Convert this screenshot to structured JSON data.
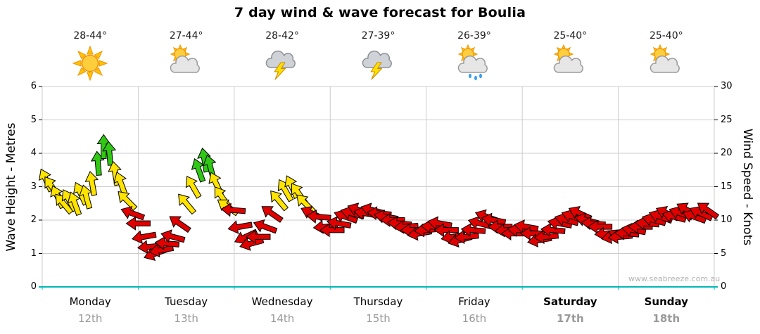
{
  "title": "7 day wind & wave forecast for Boulia",
  "watermark": "www.seabreeze.com.au",
  "days": [
    {
      "name": "Monday",
      "date": "12th",
      "temp": "28-44°",
      "icon": "sun",
      "bold": false
    },
    {
      "name": "Tuesday",
      "date": "13th",
      "temp": "27-44°",
      "icon": "sun-cloud",
      "bold": false
    },
    {
      "name": "Wednesday",
      "date": "14th",
      "temp": "28-42°",
      "icon": "storm",
      "bold": false
    },
    {
      "name": "Thursday",
      "date": "15th",
      "temp": "27-39°",
      "icon": "storm",
      "bold": false
    },
    {
      "name": "Friday",
      "date": "16th",
      "temp": "26-39°",
      "icon": "sun-cloud-showers",
      "bold": false
    },
    {
      "name": "Saturday",
      "date": "17th",
      "temp": "25-40°",
      "icon": "sun-cloud",
      "bold": true
    },
    {
      "name": "Sunday",
      "date": "18th",
      "temp": "25-40°",
      "icon": "sun-cloud",
      "bold": true
    }
  ],
  "chart_data": {
    "type": "scatter",
    "marker": "directional-wind-arrow",
    "title": "7 day wind & wave forecast for Boulia",
    "x_axis": {
      "categories": [
        "Monday 12th",
        "Tuesday 13th",
        "Wednesday 14th",
        "Thursday 15th",
        "Friday 16th",
        "Saturday 17th",
        "Sunday 18th"
      ],
      "range_days": [
        0,
        7
      ]
    },
    "left_axis": {
      "label": "Wave Height - Metres",
      "min": 0,
      "max": 6,
      "ticks": [
        0,
        1,
        2,
        3,
        4,
        5,
        6
      ]
    },
    "right_axis": {
      "label": "Wind Speed - Knots",
      "min": 0,
      "max": 30,
      "ticks": [
        0,
        5,
        10,
        15,
        20,
        25,
        30
      ]
    },
    "grid": true,
    "colors": {
      "red": "#e00000",
      "yellow": "#ffe400",
      "green": "#30c814",
      "axis": "#00b8b8",
      "grid": "#cccccc",
      "yellow_min": 12,
      "green_min": 17.5
    },
    "point_format": [
      "day_offset",
      "wind_speed_knots",
      "arrow_direction_deg"
    ],
    "points": [
      [
        0.04,
        16,
        -25
      ],
      [
        0.1,
        15,
        -35
      ],
      [
        0.16,
        13.5,
        -25
      ],
      [
        0.22,
        12.5,
        -40
      ],
      [
        0.28,
        13,
        -30
      ],
      [
        0.34,
        12.5,
        -20
      ],
      [
        0.4,
        14,
        -25
      ],
      [
        0.46,
        13.5,
        -15
      ],
      [
        0.52,
        15.5,
        -10
      ],
      [
        0.58,
        18.5,
        -5
      ],
      [
        0.64,
        21,
        0
      ],
      [
        0.7,
        20,
        -5
      ],
      [
        0.76,
        17,
        -10
      ],
      [
        0.82,
        15.5,
        -20
      ],
      [
        0.88,
        13,
        -45
      ],
      [
        0.94,
        11,
        -70
      ],
      [
        1.0,
        9.5,
        -90
      ],
      [
        1.06,
        7.5,
        -100
      ],
      [
        1.12,
        6,
        -95
      ],
      [
        1.18,
        5,
        -110
      ],
      [
        1.24,
        5.5,
        -100
      ],
      [
        1.3,
        6.5,
        -85
      ],
      [
        1.36,
        7.5,
        -75
      ],
      [
        1.43,
        9.5,
        -55
      ],
      [
        1.5,
        12.5,
        -40
      ],
      [
        1.57,
        15,
        -30
      ],
      [
        1.63,
        17.5,
        -20
      ],
      [
        1.69,
        19,
        -10
      ],
      [
        1.75,
        18,
        -15
      ],
      [
        1.81,
        15.5,
        -25
      ],
      [
        1.87,
        13.5,
        -35
      ],
      [
        1.93,
        12,
        -55
      ],
      [
        1.99,
        11.5,
        -85
      ],
      [
        2.06,
        9,
        -100
      ],
      [
        2.12,
        7.5,
        -115
      ],
      [
        2.18,
        6.5,
        -105
      ],
      [
        2.25,
        7.5,
        -90
      ],
      [
        2.32,
        9,
        -70
      ],
      [
        2.39,
        11,
        -55
      ],
      [
        2.46,
        13,
        -40
      ],
      [
        2.53,
        14.5,
        -30
      ],
      [
        2.6,
        15,
        -25
      ],
      [
        2.67,
        14,
        -35
      ],
      [
        2.74,
        12.5,
        -45
      ],
      [
        2.81,
        11,
        -65
      ],
      [
        2.88,
        10.5,
        -85
      ],
      [
        2.95,
        9,
        -95
      ],
      [
        3.02,
        8.5,
        -90
      ],
      [
        3.09,
        9.5,
        -80
      ],
      [
        3.16,
        10.5,
        -70
      ],
      [
        3.23,
        11,
        -75
      ],
      [
        3.3,
        11.5,
        -70
      ],
      [
        3.37,
        11,
        -80
      ],
      [
        3.44,
        11.5,
        -75
      ],
      [
        3.51,
        11,
        -85
      ],
      [
        3.58,
        10.5,
        -80
      ],
      [
        3.65,
        10,
        -90
      ],
      [
        3.72,
        9.5,
        -85
      ],
      [
        3.79,
        9,
        -95
      ],
      [
        3.86,
        8.5,
        -90
      ],
      [
        3.93,
        8,
        -100
      ],
      [
        4.0,
        8.5,
        -95
      ],
      [
        4.07,
        9,
        -85
      ],
      [
        4.14,
        9.5,
        -80
      ],
      [
        4.21,
        8.5,
        -90
      ],
      [
        4.28,
        7.5,
        -100
      ],
      [
        4.35,
        7,
        -105
      ],
      [
        4.42,
        7.5,
        -95
      ],
      [
        4.49,
        8.5,
        -85
      ],
      [
        4.56,
        9.5,
        -75
      ],
      [
        4.63,
        10.5,
        -70
      ],
      [
        4.7,
        10,
        -80
      ],
      [
        4.77,
        9,
        -90
      ],
      [
        4.84,
        8.5,
        -95
      ],
      [
        4.91,
        8,
        -90
      ],
      [
        4.97,
        8.5,
        -85
      ],
      [
        5.04,
        9,
        -80
      ],
      [
        5.11,
        8,
        -90
      ],
      [
        5.18,
        7,
        -100
      ],
      [
        5.25,
        7.5,
        -95
      ],
      [
        5.32,
        8.5,
        -85
      ],
      [
        5.39,
        9.5,
        -80
      ],
      [
        5.46,
        10,
        -75
      ],
      [
        5.53,
        10.5,
        -70
      ],
      [
        5.6,
        11,
        -65
      ],
      [
        5.67,
        10,
        -75
      ],
      [
        5.74,
        9.5,
        -85
      ],
      [
        5.81,
        9,
        -90
      ],
      [
        5.88,
        8,
        -95
      ],
      [
        5.95,
        7.5,
        -100
      ],
      [
        6.02,
        7.5,
        -95
      ],
      [
        6.09,
        8,
        -85
      ],
      [
        6.16,
        8.5,
        -80
      ],
      [
        6.23,
        9,
        -90
      ],
      [
        6.3,
        9.5,
        -85
      ],
      [
        6.37,
        10,
        -75
      ],
      [
        6.44,
        10.5,
        -70
      ],
      [
        6.51,
        11,
        -65
      ],
      [
        6.58,
        10.5,
        -75
      ],
      [
        6.65,
        11,
        -70
      ],
      [
        6.72,
        11.5,
        -60
      ],
      [
        6.79,
        10.5,
        -70
      ],
      [
        6.86,
        11,
        -65
      ],
      [
        6.93,
        11.5,
        -55
      ]
    ]
  }
}
